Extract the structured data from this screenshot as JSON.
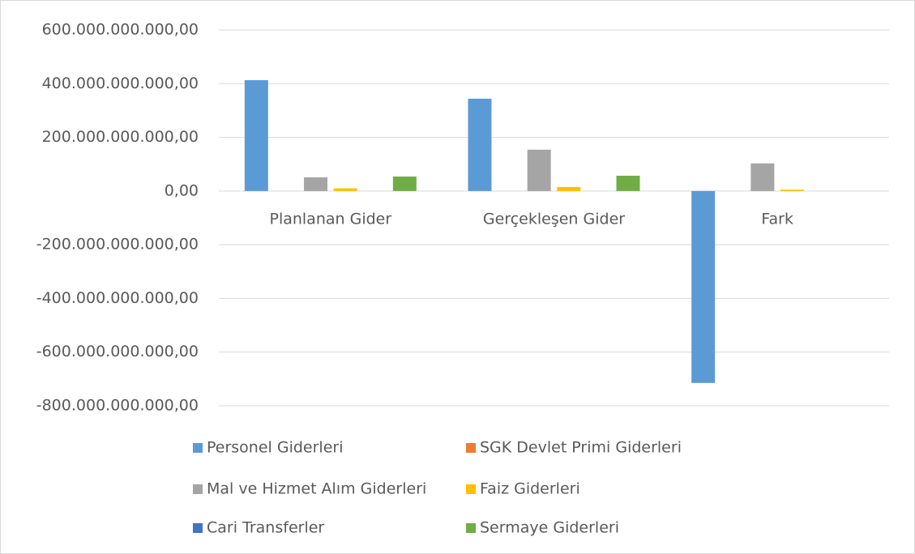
{
  "chart_data": {
    "type": "bar",
    "categories": [
      "Planlanan Gider",
      "Gerçekleşen Gider",
      "Fark"
    ],
    "series": [
      {
        "name": "Personel Giderleri",
        "color": "#5b9bd5",
        "values": [
          413000000000,
          344000000000,
          -715000000000
        ]
      },
      {
        "name": "SGK Devlet Primi Giderleri",
        "color": "#ed7d31",
        "values": [
          0,
          0,
          0
        ]
      },
      {
        "name": "Mal ve Hizmet Alım Giderleri",
        "color": "#a5a5a5",
        "values": [
          51000000000,
          154000000000,
          103000000000
        ]
      },
      {
        "name": "Faiz Giderleri",
        "color": "#ffc000",
        "values": [
          10000000000,
          15000000000,
          5000000000
        ]
      },
      {
        "name": "Cari Transferler",
        "color": "#4472c4",
        "values": [
          0,
          0,
          0
        ]
      },
      {
        "name": "Sermaye Giderleri",
        "color": "#70ad47",
        "values": [
          54000000000,
          57000000000,
          0
        ]
      }
    ],
    "ylim": [
      -800000000000,
      600000000000
    ],
    "yticks": [
      {
        "value": 600000000000,
        "label": "600.000.000.000,00"
      },
      {
        "value": 400000000000,
        "label": "400.000.000.000,00"
      },
      {
        "value": 200000000000,
        "label": "200.000.000.000,00"
      },
      {
        "value": 0,
        "label": "0,00"
      },
      {
        "value": -200000000000,
        "label": "-200.000.000.000,00"
      },
      {
        "value": -400000000000,
        "label": "-400.000.000.000,00"
      },
      {
        "value": -600000000000,
        "label": "-600.000.000.000,00"
      },
      {
        "value": -800000000000,
        "label": "-800.000.000.000,00"
      }
    ],
    "grid": true,
    "legend": "bottom"
  }
}
